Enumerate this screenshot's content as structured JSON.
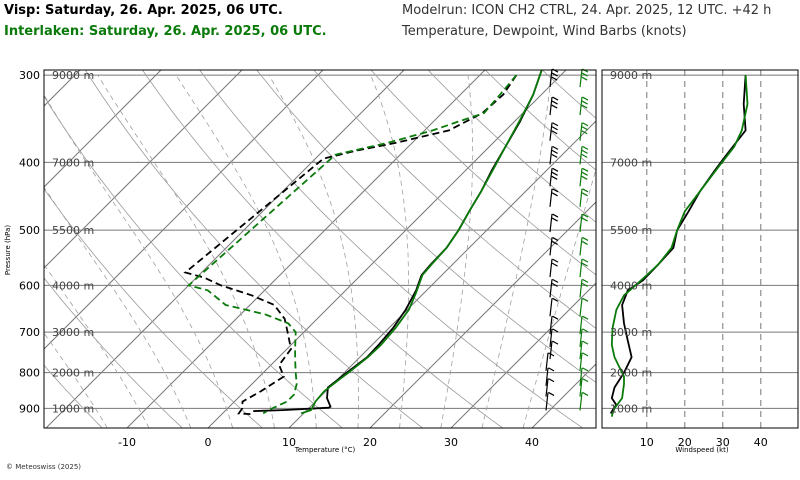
{
  "header": {
    "title_line1": "Visp: Saturday, 26. Apr. 2025, 06 UTC.",
    "title_line2": "Interlaken: Saturday, 26. Apr. 2025, 06 UTC.",
    "modelrun": "Modelrun: ICON CH2 CTRL, 24. Apr. 2025, 12 UTC. +42 h",
    "variables": "Temperature, Dewpoint, Wind Barbs (knots)"
  },
  "copyright": "© Meteoswiss (2025)",
  "colors": {
    "visp": "#000000",
    "interlaken": "#0a7a0a",
    "grid": "#888888"
  },
  "chart_data": [
    {
      "type": "line",
      "subtype": "skew-T log-p diagram",
      "xlabel": "Temperature (°C)",
      "ylabel": "Pressure (hPa)",
      "xticks": [
        -10,
        0,
        10,
        20,
        30,
        40
      ],
      "xtick_labels": [
        "-10",
        "0",
        "10",
        "20",
        "30",
        "40"
      ],
      "yticks": [
        300,
        400,
        500,
        600,
        700,
        800,
        900
      ],
      "ytick_labels": [
        "300",
        "400",
        "500",
        "600",
        "700",
        "800",
        "900"
      ],
      "altitude_labels": [
        {
          "text": "9000 m",
          "p": 300
        },
        {
          "text": "7000 m",
          "p": 400
        },
        {
          "text": "5500 m",
          "p": 500
        },
        {
          "text": "4000 m",
          "p": 600
        },
        {
          "text": "3000 m",
          "p": 700
        },
        {
          "text": "2000 m",
          "p": 800
        },
        {
          "text": "1000 m",
          "p": 900
        }
      ],
      "ylim": [
        295,
        960
      ],
      "series": [
        {
          "name": "Visp",
          "kind": "temperature",
          "color": "#000000",
          "points": [
            [
              -3,
              295
            ],
            [
              -1,
              320
            ],
            [
              0.7,
              350
            ],
            [
              2,
              380
            ],
            [
              3.2,
              410
            ],
            [
              4.5,
              440
            ],
            [
              5.5,
              470
            ],
            [
              6.5,
              500
            ],
            [
              7.2,
              530
            ],
            [
              7.3,
              560
            ],
            [
              7.5,
              580
            ],
            [
              8.7,
              610
            ],
            [
              9.8,
              650
            ],
            [
              10.5,
              690
            ],
            [
              10.8,
              730
            ],
            [
              10.9,
              760
            ],
            [
              10.3,
              800
            ],
            [
              9.8,
              840
            ],
            [
              11,
              870
            ],
            [
              12.5,
              895
            ],
            [
              12.4,
              898
            ],
            [
              7,
              905
            ],
            [
              3.5,
              908
            ]
          ]
        },
        {
          "name": "Visp",
          "kind": "dewpoint",
          "color": "#000000",
          "points": [
            [
              -5.5,
              300
            ],
            [
              -4.7,
              320
            ],
            [
              -5,
              340
            ],
            [
              -7,
              360
            ],
            [
              -12,
              375
            ],
            [
              -16,
              385
            ],
            [
              -19,
              395
            ],
            [
              -22,
              575
            ],
            [
              -19,
              585
            ],
            [
              -16,
              600
            ],
            [
              -11,
              620
            ],
            [
              -7,
              640
            ],
            [
              -4,
              670
            ],
            [
              -2,
              700
            ],
            [
              0.5,
              740
            ],
            [
              1,
              780
            ],
            [
              3,
              810
            ],
            [
              2,
              850
            ],
            [
              1,
              880
            ],
            [
              1.8,
              900
            ],
            [
              2,
              915
            ],
            [
              4,
              918
            ]
          ]
        },
        {
          "name": "Interlaken",
          "kind": "temperature",
          "color": "#0a7a0a",
          "points": [
            [
              -3,
              295
            ],
            [
              -1,
              320
            ],
            [
              0.6,
              350
            ],
            [
              2,
              380
            ],
            [
              3.3,
              410
            ],
            [
              4.5,
              440
            ],
            [
              5.5,
              470
            ],
            [
              6.5,
              500
            ],
            [
              7.2,
              530
            ],
            [
              7.4,
              560
            ],
            [
              7.6,
              580
            ],
            [
              9,
              615
            ],
            [
              10.2,
              650
            ],
            [
              10.8,
              690
            ],
            [
              11.1,
              730
            ],
            [
              11,
              760
            ],
            [
              10.5,
              800
            ],
            [
              10.2,
              820
            ],
            [
              9.8,
              850
            ],
            [
              10,
              880
            ],
            [
              10.5,
              905
            ],
            [
              9.7,
              915
            ]
          ]
        },
        {
          "name": "Interlaken",
          "kind": "dewpoint",
          "color": "#0a7a0a",
          "points": [
            [
              -5.5,
              300
            ],
            [
              -5.1,
              320
            ],
            [
              -4.8,
              340
            ],
            [
              -7,
              350
            ],
            [
              -9,
              360
            ],
            [
              -13,
              375
            ],
            [
              -18,
              390
            ],
            [
              -20,
              600
            ],
            [
              -17,
              610
            ],
            [
              -13,
              640
            ],
            [
              -7,
              660
            ],
            [
              -3,
              680
            ],
            [
              -1,
              700
            ],
            [
              1,
              740
            ],
            [
              2.5,
              770
            ],
            [
              4,
              800
            ],
            [
              5.5,
              830
            ],
            [
              6.5,
              860
            ],
            [
              6.5,
              880
            ],
            [
              5.5,
              900
            ],
            [
              5,
              915
            ]
          ]
        }
      ],
      "wind_barbs": {
        "Visp": "left column",
        "Interlaken": "right column"
      }
    },
    {
      "type": "line",
      "xlabel": "Windspeed (kt)",
      "xticks": [
        10,
        20,
        30,
        40
      ],
      "xtick_labels": [
        "10",
        "20",
        "30",
        "40"
      ],
      "xlim": [
        -1,
        46
      ],
      "altitude_labels": [
        "9000 m",
        "7000 m",
        "5500 m",
        "4000 m",
        "3000 m",
        "2000 m",
        "1000 m"
      ],
      "series": [
        {
          "name": "Visp",
          "color": "#000000",
          "points": [
            [
              36,
              300
            ],
            [
              35.5,
              330
            ],
            [
              36,
              360
            ],
            [
              31,
              390
            ],
            [
              28,
              410
            ],
            [
              24,
              440
            ],
            [
              21,
              470
            ],
            [
              18,
              500
            ],
            [
              17,
              530
            ],
            [
              13,
              560
            ],
            [
              9,
              590
            ],
            [
              5,
              610
            ],
            [
              3.5,
              640
            ],
            [
              4,
              680
            ],
            [
              5,
              720
            ],
            [
              6,
              760
            ],
            [
              4,
              800
            ],
            [
              1.5,
              840
            ],
            [
              0.8,
              870
            ],
            [
              2,
              890
            ],
            [
              1,
              905
            ],
            [
              0.5,
              915
            ]
          ]
        },
        {
          "name": "Interlaken",
          "color": "#0a7a0a",
          "points": [
            [
              36,
              300
            ],
            [
              36.5,
              330
            ],
            [
              35,
              360
            ],
            [
              33,
              380
            ],
            [
              29,
              405
            ],
            [
              24,
              440
            ],
            [
              20,
              470
            ],
            [
              18,
              500
            ],
            [
              16.5,
              530
            ],
            [
              13,
              560
            ],
            [
              10,
              580
            ],
            [
              7,
              600
            ],
            [
              4,
              620
            ],
            [
              2,
              650
            ],
            [
              1,
              690
            ],
            [
              0.8,
              730
            ],
            [
              1.5,
              760
            ],
            [
              3,
              790
            ],
            [
              4,
              810
            ],
            [
              4,
              830
            ],
            [
              3.5,
              870
            ],
            [
              1.5,
              900
            ],
            [
              1,
              915
            ],
            [
              0.8,
              925
            ]
          ]
        }
      ]
    }
  ]
}
